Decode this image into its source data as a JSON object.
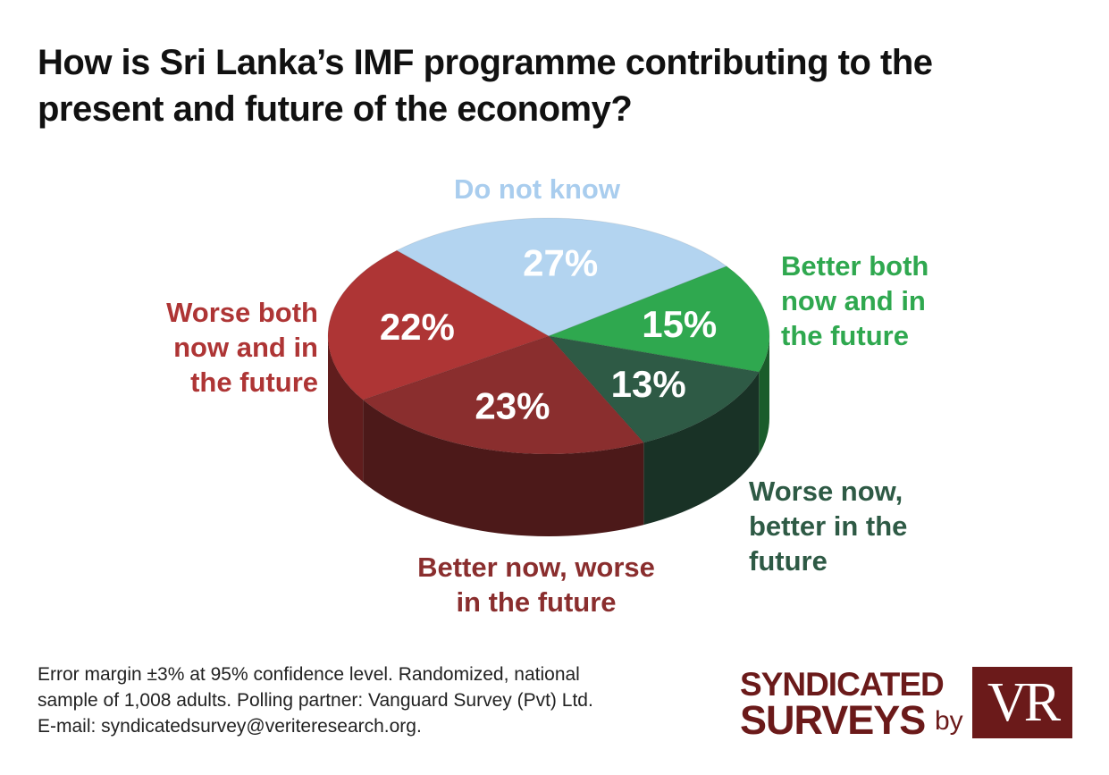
{
  "title_line1": "How is Sri Lanka’s IMF programme contributing to the",
  "title_line2": "present and future of the economy?",
  "chart_data": {
    "type": "pie",
    "style": "3d",
    "slices": [
      {
        "label": "Do not know",
        "value": 27,
        "display": "27%",
        "color": "#b3d4f0",
        "label_lines": [
          "Do not know"
        ]
      },
      {
        "label": "Better both now and in the future",
        "value": 15,
        "display": "15%",
        "color": "#2fa84f",
        "label_lines": [
          "Better both",
          "now and in",
          "the future"
        ]
      },
      {
        "label": "Worse now, better in the future",
        "value": 13,
        "display": "13%",
        "color": "#2e5a45",
        "label_lines": [
          "Worse now,",
          "better in the",
          "future"
        ]
      },
      {
        "label": "Better now, worse in the future",
        "value": 23,
        "display": "23%",
        "color": "#8a2e2e",
        "label_lines": [
          "Better now, worse",
          "in the future"
        ]
      },
      {
        "label": "Worse both now and in the future",
        "value": 22,
        "display": "22%",
        "color": "#ae3535",
        "label_lines": [
          "Worse both",
          "now and in",
          "the future"
        ]
      }
    ]
  },
  "footer": {
    "line1": "Error margin ±3% at 95% confidence level. Randomized, national",
    "line2": "sample of 1,008 adults. Polling partner: Vanguard Survey (Pvt) Ltd.",
    "line3": "E-mail: syndicatedsurvey@veriteresearch.org."
  },
  "brand": {
    "line1": "SYNDICATED",
    "line2": "SURVEYS",
    "by": "by",
    "logo_text": "VR"
  }
}
